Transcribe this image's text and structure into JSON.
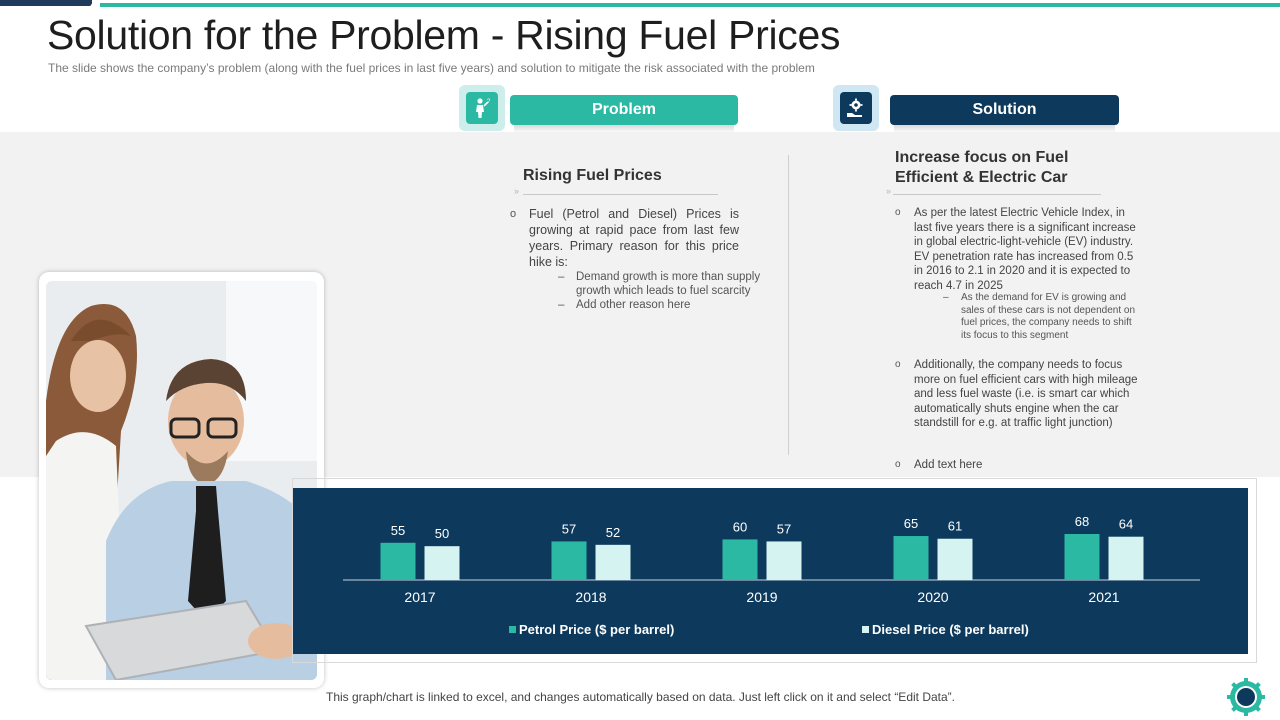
{
  "slide": {
    "title": "Solution for the Problem - Rising Fuel Prices",
    "subtitle": "The slide shows the company’s problem (along with the fuel prices in last five years) and solution to mitigate the risk associated with the problem",
    "footnote": "This graph/chart is linked to excel, and changes automatically based on data. Just left click on it and select “Edit Data”."
  },
  "problem": {
    "header": "Problem",
    "heading": "Rising Fuel Prices",
    "bullet": "Fuel (Petrol and Diesel) Prices is growing at rapid pace from last few years. Primary reason for this price hike is:",
    "sub_items": [
      "Demand growth is more than supply growth which leads to fuel scarcity",
      "Add other reason here"
    ]
  },
  "solution": {
    "header": "Solution",
    "heading": "Increase focus on Fuel Efficient & Electric Car",
    "bullets": [
      "As per the latest Electric Vehicle Index, in last five years there is a significant increase in global electric-light-vehicle (EV) industry. EV penetration rate has increased from 0.5 in 2016 to 2.1 in 2020 and it is expected to reach 4.7 in 2025",
      "Additionally, the company needs to focus more on fuel efficient cars with high mileage and less fuel waste (i.e. is smart car which automatically shuts engine when the car standstill for e.g. at traffic light junction)",
      "Add text here"
    ],
    "sub_item": "As the demand for EV is growing and sales of these cars is not dependent on fuel prices, the company needs to shift its focus to this segment"
  },
  "colors": {
    "teal": "#2bb9a4",
    "navy": "#0d3a5c",
    "light_teal": "#cdf1ee",
    "petrol_bar": "#2bb9a4",
    "diesel_bar": "#d4f3f1"
  },
  "icons": {
    "problem": "person-icon",
    "solution": "gear-hand-icon",
    "logo": "gear-logo-icon"
  },
  "chart_data": {
    "type": "bar",
    "categories": [
      "2017",
      "2018",
      "2019",
      "2020",
      "2021"
    ],
    "series": [
      {
        "name": "Petrol Price ($ per barrel)",
        "values": [
          55,
          57,
          60,
          65,
          68
        ]
      },
      {
        "name": "Diesel Price ($ per barrel)",
        "values": [
          50,
          52,
          57,
          61,
          64
        ]
      }
    ],
    "title": "",
    "xlabel": "",
    "ylabel": "",
    "ylim": [
      0,
      100
    ],
    "legend": "bottom"
  }
}
